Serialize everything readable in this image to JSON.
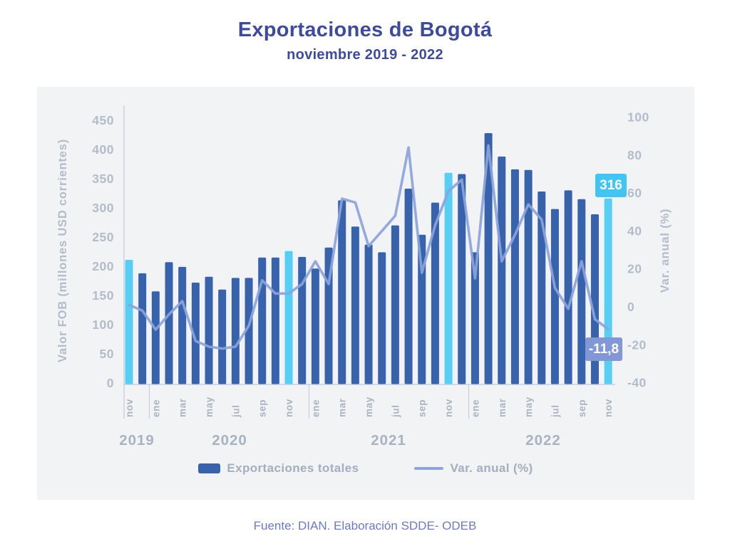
{
  "page": {
    "title": "Exportaciones de Bogotá",
    "subtitle": "noviembre 2019 - 2022",
    "source": "Fuente: DIAN. Elaboración SDDE- ODEB"
  },
  "legend": {
    "bar_label": "Exportaciones totales",
    "line_label": "Var. anual (%)"
  },
  "annotations": {
    "last_bar_value": "316",
    "last_var_value": "-11,8"
  },
  "colors": {
    "title": "#3D4B9E",
    "panel_bg": "#F2F3F5",
    "bar": "#3763AC",
    "bar_highlight": "#55CFF5",
    "line": "#8CA3DB",
    "annotation_bar_bg": "#41C5F4",
    "annotation_var_bg": "#8297D5",
    "axis_line": "#C9CED8",
    "tick_text": "#B2BCCA",
    "axis_title_text": "#B2BCCA",
    "month_text": "#A9B3C3",
    "year_text": "#A9B3C0",
    "legend_text": "#A3AEBE",
    "footer_text": "#6C7AC4"
  },
  "chart_data": {
    "type": "bar",
    "title": "Exportaciones de Bogotá",
    "subtitle": "noviembre 2019 - 2022",
    "categories": [
      "nov 2019",
      "dic 2019",
      "ene 2020",
      "feb 2020",
      "mar 2020",
      "abr 2020",
      "may 2020",
      "jun 2020",
      "jul 2020",
      "ago 2020",
      "sep 2020",
      "oct 2020",
      "nov 2020",
      "dic 2020",
      "ene 2021",
      "feb 2021",
      "mar 2021",
      "abr 2021",
      "may 2021",
      "jun 2021",
      "jul 2021",
      "ago 2021",
      "sep 2021",
      "oct 2021",
      "nov 2021",
      "dic 2021",
      "ene 2022",
      "feb 2022",
      "mar 2022",
      "abr 2022",
      "may 2022",
      "jun 2022",
      "jul 2022",
      "ago 2022",
      "sep 2022",
      "oct 2022",
      "nov 2022"
    ],
    "series": [
      {
        "name": "Exportaciones totales",
        "render": "bar",
        "axis": "left",
        "values": [
          211,
          188,
          157,
          207,
          199,
          172,
          182,
          160,
          180,
          180,
          215,
          215,
          226,
          216,
          196,
          232,
          313,
          268,
          237,
          224,
          270,
          333,
          254,
          309,
          360,
          358,
          224,
          428,
          388,
          366,
          365,
          328,
          298,
          330,
          315,
          289,
          316
        ]
      },
      {
        "name": "Var. anual (%)",
        "render": "line",
        "axis": "right",
        "values": [
          1,
          -2,
          -12,
          -4,
          3,
          -18,
          -21,
          -22,
          -21,
          -10,
          14,
          7,
          7,
          12,
          24,
          12,
          57,
          55,
          32,
          40,
          48,
          84,
          18,
          43,
          61,
          67,
          15,
          85,
          24,
          38,
          54,
          46,
          10,
          -1,
          24,
          -6.5,
          -11.8
        ]
      }
    ],
    "highlight_indices": [
      0,
      12,
      24,
      36
    ],
    "x_tick_months": [
      "nov",
      "ene",
      "mar",
      "may",
      "jul",
      "sep",
      "nov",
      "ene",
      "mar",
      "may",
      "jul",
      "sep",
      "nov",
      "ene",
      "mar",
      "may",
      "jul",
      "sep",
      "nov"
    ],
    "year_labels": [
      "2019",
      "2020",
      "2021",
      "2022"
    ],
    "left_axis": {
      "label": "Valor FOB (millones USD corrientes)",
      "min": 0,
      "max": 450,
      "step": 50
    },
    "right_axis": {
      "label": "Var. anual (%)",
      "min": -40,
      "max": 100,
      "step": 20
    },
    "grid": false,
    "legend_position": "bottom"
  }
}
